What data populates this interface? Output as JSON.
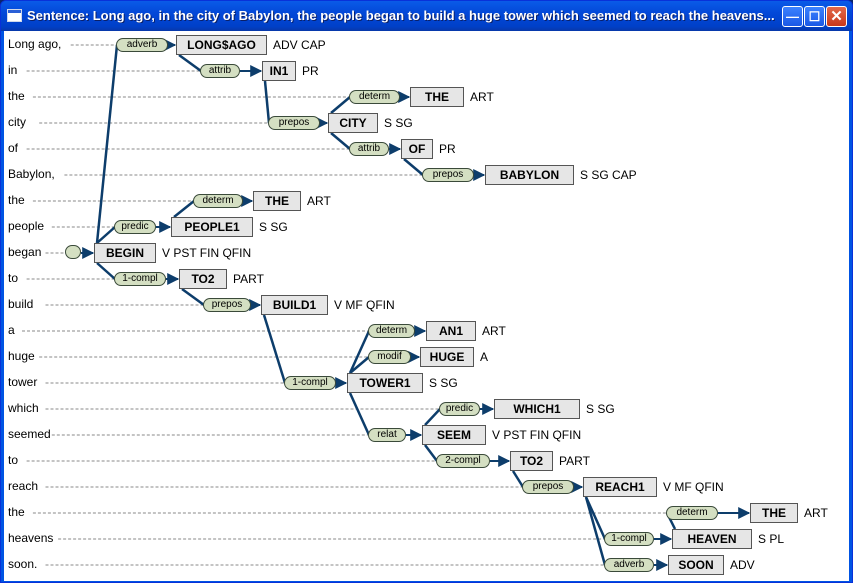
{
  "window": {
    "title": "Sentence: Long ago, in the city of Babylon, the people began to build a huge tower which seemed to reach the heavens...",
    "minimize_glyph": "—",
    "maximize_glyph": "☐",
    "close_glyph": "✕"
  },
  "words": [
    "Long ago,",
    "in",
    "the",
    "city",
    "of",
    "Babylon,",
    "the",
    "people",
    "began",
    "to",
    "build",
    "a",
    "huge",
    "tower",
    "which",
    "seemed",
    "to",
    "reach",
    "the",
    "heavens",
    "soon."
  ],
  "nodes": [
    {
      "row": 0,
      "label": "LONG$AGO",
      "tags": "ADV CAP",
      "relation": "adverb",
      "parent": 8
    },
    {
      "row": 1,
      "label": "IN1",
      "tags": "PR",
      "relation": "attrib",
      "parent": 0
    },
    {
      "row": 2,
      "label": "THE",
      "tags": "ART",
      "relation": "determ",
      "parent": 3
    },
    {
      "row": 3,
      "label": "CITY",
      "tags": "S SG",
      "relation": "prepos",
      "parent": 1
    },
    {
      "row": 4,
      "label": "OF",
      "tags": "PR",
      "relation": "attrib",
      "parent": 3
    },
    {
      "row": 5,
      "label": "BABYLON",
      "tags": "S SG CAP",
      "relation": "prepos",
      "parent": 4
    },
    {
      "row": 6,
      "label": "THE",
      "tags": "ART",
      "relation": "determ",
      "parent": 7
    },
    {
      "row": 7,
      "label": "PEOPLE1",
      "tags": "S SG",
      "relation": "predic",
      "parent": 8
    },
    {
      "row": 8,
      "label": "BEGIN",
      "tags": "V PST FIN QFIN",
      "relation": "",
      "parent": -1
    },
    {
      "row": 9,
      "label": "TO2",
      "tags": "PART",
      "relation": "1-compl",
      "parent": 8
    },
    {
      "row": 10,
      "label": "BUILD1",
      "tags": "V MF QFIN",
      "relation": "prepos",
      "parent": 9
    },
    {
      "row": 11,
      "label": "AN1",
      "tags": "ART",
      "relation": "determ",
      "parent": 13
    },
    {
      "row": 12,
      "label": "HUGE",
      "tags": "A",
      "relation": "modif",
      "parent": 13
    },
    {
      "row": 13,
      "label": "TOWER1",
      "tags": "S SG",
      "relation": "1-compl",
      "parent": 10
    },
    {
      "row": 14,
      "label": "WHICH1",
      "tags": "S SG",
      "relation": "predic",
      "parent": 15
    },
    {
      "row": 15,
      "label": "SEEM",
      "tags": "V PST FIN QFIN",
      "relation": "relat",
      "parent": 13
    },
    {
      "row": 16,
      "label": "TO2",
      "tags": "PART",
      "relation": "2-compl",
      "parent": 15
    },
    {
      "row": 17,
      "label": "REACH1",
      "tags": "V MF QFIN",
      "relation": "prepos",
      "parent": 16
    },
    {
      "row": 18,
      "label": "THE",
      "tags": "ART",
      "relation": "determ",
      "parent": 19
    },
    {
      "row": 19,
      "label": "HEAVEN",
      "tags": "S PL",
      "relation": "1-compl",
      "parent": 17
    },
    {
      "row": 20,
      "label": "SOON",
      "tags": "ADV",
      "relation": "adverb",
      "parent": 17
    }
  ],
  "colors": {
    "edge": "#0d3d6b",
    "dotted": "#8a8a8a",
    "node_fill": "#e6e6e6",
    "relation_fill": "#d4dfc2"
  }
}
